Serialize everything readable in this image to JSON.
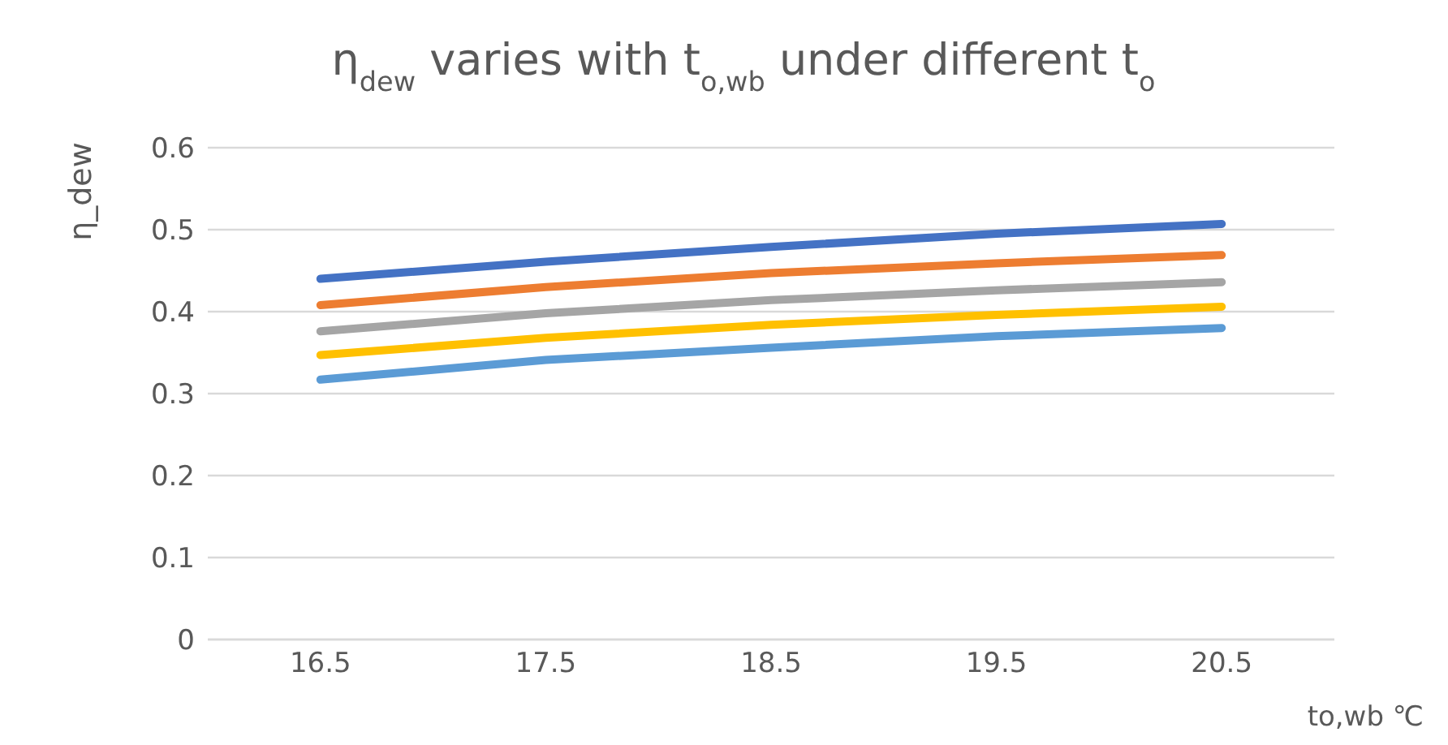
{
  "chart_data": {
    "type": "line",
    "title": "η$_{dew}$ varies with t$_{o,wb}$ under different t$_{o}$",
    "xlabel": "to,wb  ℃",
    "ylabel": "η_dew",
    "categories": [
      "16.5",
      "17.5",
      "18.5",
      "19.5",
      "20.5"
    ],
    "series": [
      {
        "color": "#4472c4",
        "values": [
          0.44,
          0.461,
          0.479,
          0.495,
          0.507
        ]
      },
      {
        "color": "#ed7d31",
        "values": [
          0.408,
          0.43,
          0.447,
          0.459,
          0.469
        ]
      },
      {
        "color": "#a5a5a5",
        "values": [
          0.376,
          0.398,
          0.414,
          0.426,
          0.436
        ]
      },
      {
        "color": "#ffc000",
        "values": [
          0.347,
          0.368,
          0.384,
          0.396,
          0.406
        ]
      },
      {
        "color": "#5b9bd5",
        "values": [
          0.317,
          0.341,
          0.356,
          0.37,
          0.38
        ]
      }
    ],
    "ylim": [
      0,
      0.6
    ],
    "yticks": [
      0,
      0.1,
      0.2,
      0.3,
      0.4,
      0.5,
      0.6
    ],
    "grid": "y",
    "legend": false,
    "marker": "none",
    "line_style": "solid"
  }
}
